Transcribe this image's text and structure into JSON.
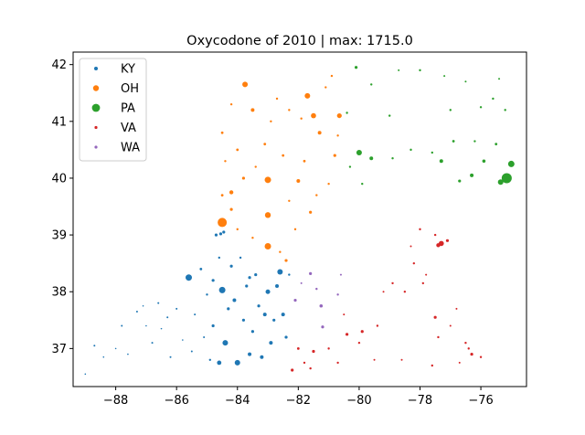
{
  "chart_data": {
    "type": "scatter",
    "title": "Oxycodone of 2010 | max: 1715.0",
    "xlabel": "",
    "ylabel": "",
    "xlim": [
      -89.4,
      -74.5
    ],
    "ylim": [
      36.33,
      42.22
    ],
    "x_ticks": [
      -88,
      -86,
      -84,
      -82,
      -80,
      -78,
      -76
    ],
    "x_tick_labels": [
      "−88",
      "−86",
      "−84",
      "−82",
      "−80",
      "−78",
      "−76"
    ],
    "y_ticks": [
      37,
      38,
      39,
      40,
      41,
      42
    ],
    "y_tick_labels": [
      "37",
      "38",
      "39",
      "40",
      "41",
      "42"
    ],
    "grid": false,
    "legend_position": "top-left",
    "legend": [
      {
        "name": "KY",
        "color": "#1f77b4",
        "size": 2
      },
      {
        "name": "OH",
        "color": "#ff7f0e",
        "size": 3.2
      },
      {
        "name": "PA",
        "color": "#2ca02c",
        "size": 4.4
      },
      {
        "name": "VA",
        "color": "#d62728",
        "size": 1.6
      },
      {
        "name": "WA",
        "color": "#9467bd",
        "size": 1.6
      }
    ],
    "series": [
      {
        "name": "KY",
        "color": "#1f77b4",
        "points": [
          [
            -89.0,
            36.55,
            0.8
          ],
          [
            -88.7,
            37.05,
            1.0
          ],
          [
            -88.4,
            36.85,
            0.8
          ],
          [
            -88.0,
            37.0,
            0.8
          ],
          [
            -87.8,
            37.4,
            1.0
          ],
          [
            -87.6,
            36.9,
            0.8
          ],
          [
            -87.3,
            37.65,
            1.0
          ],
          [
            -87.0,
            37.4,
            0.8
          ],
          [
            -86.8,
            37.1,
            1.0
          ],
          [
            -86.5,
            37.35,
            0.8
          ],
          [
            -86.2,
            36.85,
            1.0
          ],
          [
            -86.0,
            37.7,
            1.0
          ],
          [
            -85.8,
            37.15,
            0.8
          ],
          [
            -85.6,
            38.25,
            3.5
          ],
          [
            -85.4,
            37.6,
            1.0
          ],
          [
            -85.2,
            38.4,
            1.4
          ],
          [
            -85.0,
            37.95,
            1.2
          ],
          [
            -84.8,
            37.4,
            1.6
          ],
          [
            -84.6,
            38.6,
            1.2
          ],
          [
            -84.5,
            38.03,
            3.5
          ],
          [
            -84.4,
            37.1,
            3.0
          ],
          [
            -84.3,
            37.7,
            1.6
          ],
          [
            -84.2,
            38.45,
            1.6
          ],
          [
            -84.1,
            37.85,
            2.0
          ],
          [
            -84.0,
            36.75,
            3.0
          ],
          [
            -83.9,
            38.6,
            1.2
          ],
          [
            -83.8,
            37.5,
            1.6
          ],
          [
            -83.7,
            38.1,
            1.6
          ],
          [
            -83.6,
            36.9,
            2.0
          ],
          [
            -83.5,
            37.3,
            1.6
          ],
          [
            -83.4,
            38.3,
            1.6
          ],
          [
            -83.3,
            37.75,
            1.6
          ],
          [
            -83.2,
            36.85,
            2.0
          ],
          [
            -83.1,
            37.6,
            2.0
          ],
          [
            -83.0,
            38.0,
            2.5
          ],
          [
            -82.9,
            37.1,
            2.0
          ],
          [
            -82.8,
            37.5,
            1.6
          ],
          [
            -82.7,
            38.1,
            2.0
          ],
          [
            -82.6,
            38.35,
            3.0
          ],
          [
            -82.5,
            37.6,
            2.0
          ],
          [
            -82.4,
            37.2,
            1.6
          ],
          [
            -82.3,
            38.3,
            1.2
          ],
          [
            -84.7,
            39.0,
            1.6
          ],
          [
            -84.55,
            39.02,
            1.6
          ],
          [
            -84.45,
            39.05,
            1.6
          ],
          [
            -84.6,
            36.75,
            2.4
          ],
          [
            -84.9,
            36.8,
            1.2
          ],
          [
            -85.5,
            36.95,
            1.0
          ],
          [
            -86.6,
            37.8,
            1.0
          ],
          [
            -87.1,
            37.75,
            0.8
          ],
          [
            -86.3,
            37.55,
            1.0
          ],
          [
            -85.1,
            37.2,
            1.0
          ],
          [
            -83.6,
            38.25,
            1.6
          ],
          [
            -84.8,
            38.2,
            1.6
          ]
        ]
      },
      {
        "name": "OH",
        "color": "#ff7f0e",
        "points": [
          [
            -84.5,
            39.22,
            5.0
          ],
          [
            -83.0,
            38.8,
            3.5
          ],
          [
            -83.0,
            39.97,
            3.5
          ],
          [
            -83.0,
            39.35,
            3.2
          ],
          [
            -83.75,
            41.65,
            3.0
          ],
          [
            -81.7,
            41.45,
            3.0
          ],
          [
            -81.5,
            41.1,
            2.8
          ],
          [
            -80.65,
            41.1,
            2.6
          ],
          [
            -84.2,
            39.75,
            2.2
          ],
          [
            -82.0,
            39.95,
            2.0
          ],
          [
            -83.5,
            41.2,
            2.0
          ],
          [
            -81.3,
            40.8,
            2.0
          ],
          [
            -84.0,
            40.5,
            1.4
          ],
          [
            -83.1,
            40.6,
            1.4
          ],
          [
            -82.5,
            40.4,
            1.4
          ],
          [
            -81.8,
            40.3,
            1.4
          ],
          [
            -84.5,
            40.8,
            1.4
          ],
          [
            -84.2,
            41.3,
            1.2
          ],
          [
            -82.3,
            41.2,
            1.2
          ],
          [
            -81.1,
            41.6,
            1.2
          ],
          [
            -80.9,
            41.8,
            1.2
          ],
          [
            -82.7,
            41.4,
            1.2
          ],
          [
            -82.9,
            41.0,
            1.2
          ],
          [
            -84.4,
            40.3,
            1.2
          ],
          [
            -83.8,
            40.0,
            1.6
          ],
          [
            -83.4,
            40.2,
            1.2
          ],
          [
            -82.3,
            39.6,
            1.2
          ],
          [
            -81.6,
            39.4,
            1.6
          ],
          [
            -82.1,
            39.1,
            1.2
          ],
          [
            -82.6,
            38.7,
            1.2
          ],
          [
            -83.5,
            38.95,
            1.2
          ],
          [
            -84.0,
            39.1,
            1.2
          ],
          [
            -84.2,
            39.45,
            1.6
          ],
          [
            -80.8,
            40.4,
            1.6
          ],
          [
            -81.0,
            39.9,
            1.2
          ],
          [
            -81.4,
            39.7,
            1.2
          ],
          [
            -82.4,
            38.55,
            1.6
          ],
          [
            -80.7,
            40.75,
            1.2
          ],
          [
            -81.9,
            41.05,
            1.2
          ],
          [
            -84.5,
            39.7,
            1.4
          ]
        ]
      },
      {
        "name": "PA",
        "color": "#2ca02c",
        "points": [
          [
            -75.15,
            40.0,
            5.5
          ],
          [
            -75.0,
            40.25,
            3.5
          ],
          [
            -75.35,
            39.93,
            3.0
          ],
          [
            -80.0,
            40.45,
            3.0
          ],
          [
            -79.6,
            40.35,
            2.0
          ],
          [
            -77.3,
            40.3,
            2.0
          ],
          [
            -76.3,
            40.05,
            2.0
          ],
          [
            -75.9,
            40.3,
            1.8
          ],
          [
            -76.0,
            41.25,
            1.2
          ],
          [
            -75.6,
            41.4,
            1.2
          ],
          [
            -77.0,
            41.2,
            1.2
          ],
          [
            -78.3,
            40.5,
            1.2
          ],
          [
            -78.9,
            40.35,
            1.2
          ],
          [
            -79.0,
            41.1,
            1.2
          ],
          [
            -80.1,
            41.95,
            1.6
          ],
          [
            -79.6,
            41.65,
            1.2
          ],
          [
            -80.4,
            41.15,
            1.2
          ],
          [
            -76.9,
            40.65,
            1.4
          ],
          [
            -77.6,
            40.45,
            1.2
          ],
          [
            -76.7,
            39.95,
            1.6
          ],
          [
            -76.2,
            40.65,
            1.2
          ],
          [
            -75.2,
            41.2,
            1.2
          ],
          [
            -75.5,
            40.6,
            1.4
          ],
          [
            -80.3,
            40.2,
            1.2
          ],
          [
            -79.9,
            39.9,
            1.2
          ],
          [
            -78.0,
            41.9,
            1.2
          ],
          [
            -77.2,
            41.8,
            1.0
          ],
          [
            -76.5,
            41.7,
            1.0
          ],
          [
            -75.4,
            41.75,
            1.0
          ],
          [
            -78.7,
            41.9,
            1.0
          ]
        ]
      },
      {
        "name": "VA",
        "color": "#d62728",
        "points": [
          [
            -77.3,
            38.85,
            2.8
          ],
          [
            -77.4,
            38.82,
            2.2
          ],
          [
            -77.1,
            38.9,
            1.6
          ],
          [
            -82.2,
            36.62,
            1.6
          ],
          [
            -81.5,
            36.95,
            1.6
          ],
          [
            -80.4,
            37.25,
            1.6
          ],
          [
            -79.9,
            37.3,
            1.6
          ],
          [
            -78.5,
            38.0,
            1.2
          ],
          [
            -77.5,
            37.55,
            1.6
          ],
          [
            -76.3,
            36.9,
            1.6
          ],
          [
            -76.0,
            36.85,
            1.2
          ],
          [
            -76.5,
            37.1,
            1.2
          ],
          [
            -77.4,
            37.2,
            1.2
          ],
          [
            -78.9,
            38.15,
            1.2
          ],
          [
            -78.2,
            38.5,
            1.2
          ],
          [
            -79.4,
            37.4,
            1.2
          ],
          [
            -80.0,
            37.1,
            1.2
          ],
          [
            -81.0,
            37.0,
            1.2
          ],
          [
            -82.0,
            37.0,
            1.4
          ],
          [
            -81.8,
            36.75,
            1.2
          ],
          [
            -80.7,
            36.75,
            1.2
          ],
          [
            -79.5,
            36.8,
            1.0
          ],
          [
            -78.6,
            36.8,
            1.0
          ],
          [
            -77.6,
            36.7,
            1.2
          ],
          [
            -76.7,
            36.75,
            1.0
          ],
          [
            -78.3,
            38.8,
            1.0
          ],
          [
            -77.8,
            38.3,
            1.0
          ],
          [
            -78.0,
            39.1,
            1.2
          ],
          [
            -77.5,
            39.0,
            1.2
          ],
          [
            -76.8,
            37.7,
            1.0
          ],
          [
            -77.0,
            37.4,
            1.0
          ],
          [
            -79.2,
            38.0,
            1.0
          ],
          [
            -80.5,
            37.6,
            1.0
          ],
          [
            -81.6,
            36.65,
            1.2
          ],
          [
            -76.4,
            37.0,
            1.2
          ],
          [
            -77.9,
            38.15,
            1.2
          ]
        ]
      },
      {
        "name": "WA",
        "color": "#9467bd",
        "points": [
          [
            -82.1,
            37.85,
            1.6
          ],
          [
            -81.6,
            38.32,
            1.6
          ],
          [
            -81.25,
            37.75,
            1.8
          ],
          [
            -81.2,
            37.38,
            1.6
          ],
          [
            -80.7,
            37.95,
            1.2
          ],
          [
            -81.4,
            38.05,
            1.2
          ],
          [
            -80.6,
            38.3,
            1.0
          ],
          [
            -81.9,
            38.15,
            1.0
          ]
        ]
      }
    ]
  }
}
